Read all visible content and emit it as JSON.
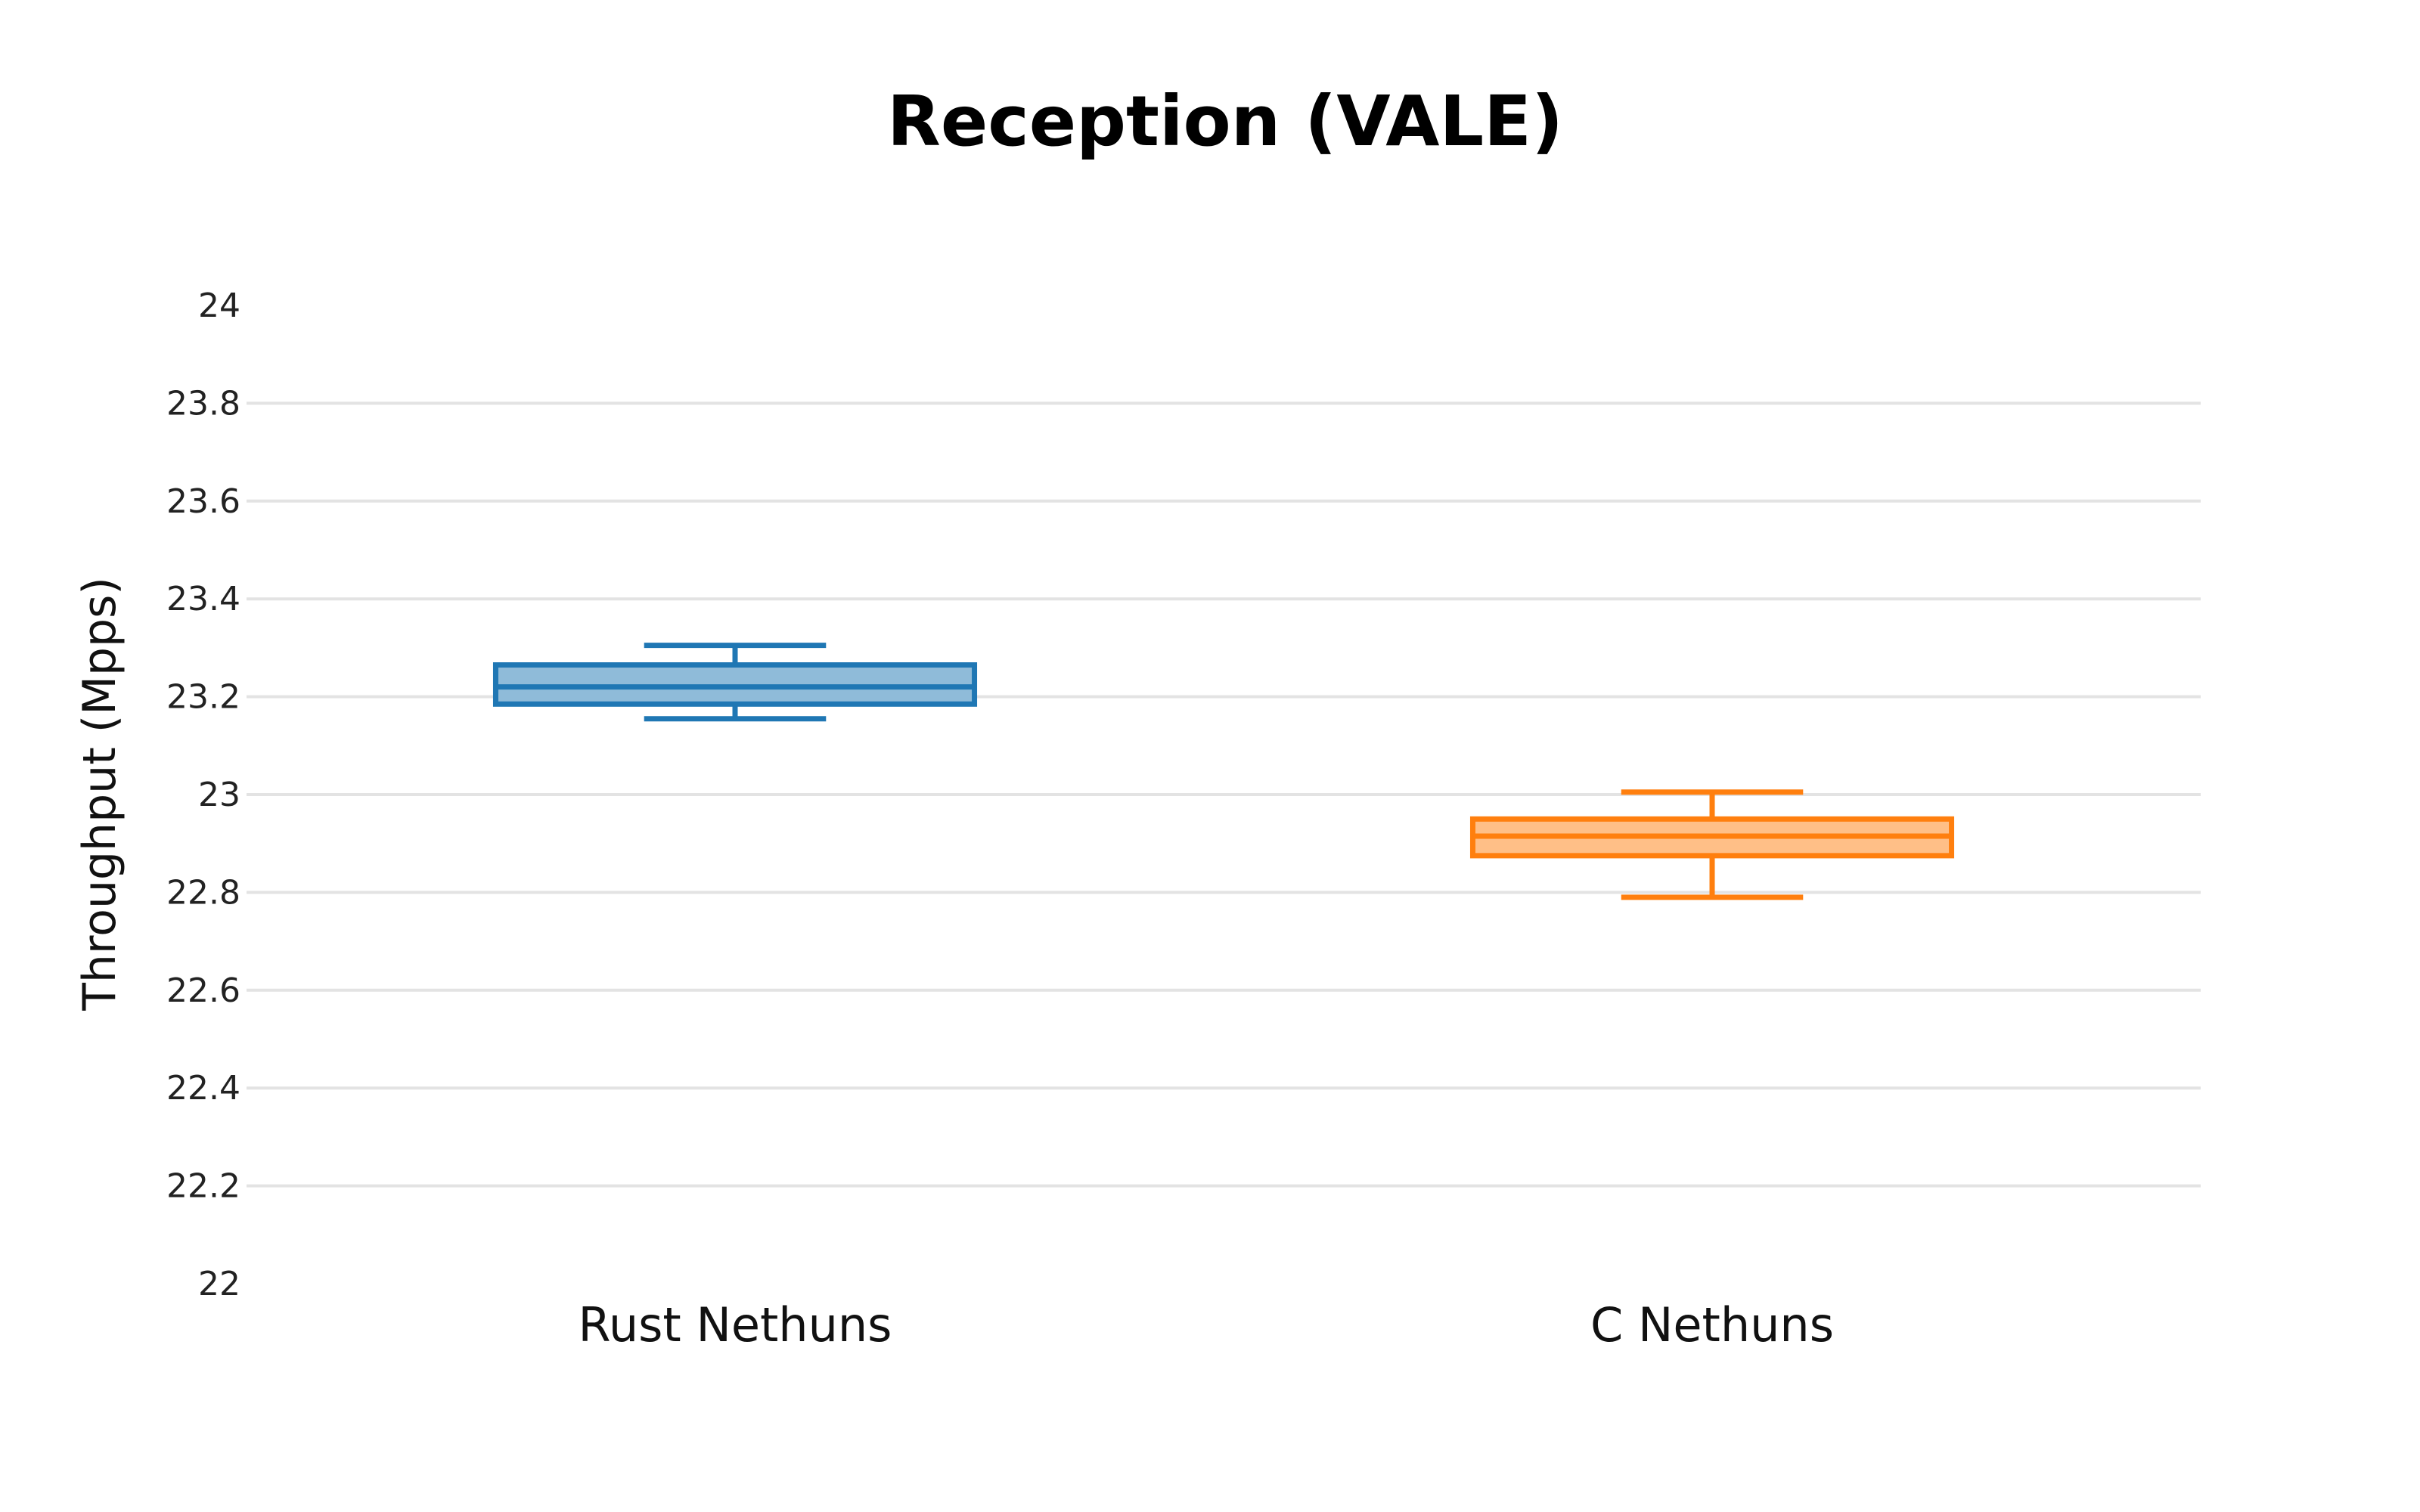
{
  "chart_data": {
    "type": "box",
    "title": "Reception (VALE)",
    "xlabel": "",
    "ylabel": "Throughput (Mpps)",
    "ylim": [
      22,
      24
    ],
    "yticks": [
      22,
      22.2,
      22.4,
      22.6,
      22.8,
      23,
      23.2,
      23.4,
      23.6,
      23.8,
      24
    ],
    "ytick_labels": [
      "22",
      "22.2",
      "22.4",
      "22.6",
      "22.8",
      "23",
      "23.2",
      "23.4",
      "23.6",
      "23.8",
      "24"
    ],
    "grid": true,
    "categories": [
      "Rust Nethuns",
      "C Nethuns"
    ],
    "boxes": [
      {
        "category": "Rust Nethuns",
        "min": 23.155,
        "q1": 23.185,
        "median": 23.22,
        "q3": 23.265,
        "max": 23.305,
        "color": "#1f77b4",
        "fill": "#8fbbd9"
      },
      {
        "category": "C Nethuns",
        "min": 22.79,
        "q1": 22.875,
        "median": 22.915,
        "q3": 22.95,
        "max": 23.005,
        "color": "#ff7f0e",
        "fill": "#ffbf87"
      }
    ]
  }
}
